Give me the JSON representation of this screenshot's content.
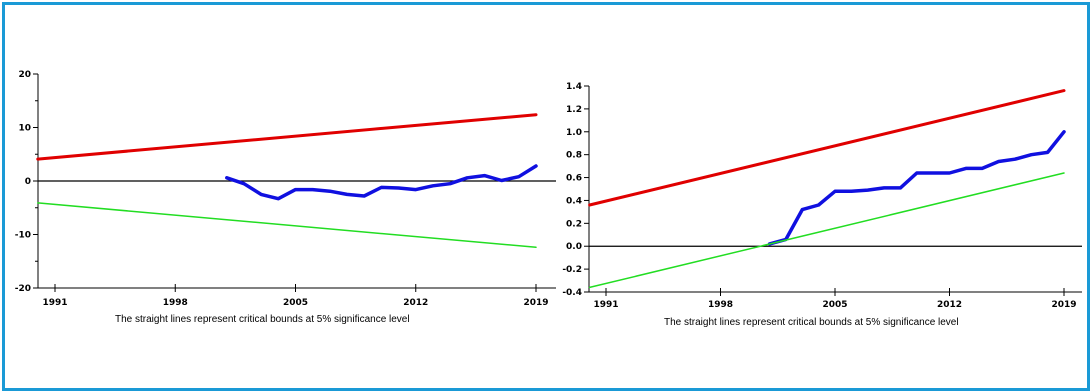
{
  "chart_data": [
    {
      "type": "line",
      "caption": "The straight lines represent critical bounds at 5% significance level",
      "x_ticks": [
        "1991",
        "1998",
        "2005",
        "2012",
        "2019"
      ],
      "y_ticks": [
        "20",
        "10",
        "0",
        "-10",
        "-20"
      ],
      "xlim": [
        1991,
        2019
      ],
      "ylim": [
        -20,
        20
      ],
      "zero_line": 0,
      "series": [
        {
          "color": "#e00000",
          "x": [
            1990,
            2019
          ],
          "y": [
            4.1,
            12.4
          ]
        },
        {
          "color": "#1010e0",
          "x": [
            2001,
            2002,
            2003,
            2004,
            2005,
            2006,
            2007,
            2008,
            2009,
            2010,
            2011,
            2012,
            2013,
            2014,
            2015,
            2016,
            2017,
            2018,
            2019
          ],
          "y": [
            0.6,
            -0.5,
            -2.5,
            -3.3,
            -1.6,
            -1.6,
            -1.9,
            -2.5,
            -2.8,
            -1.2,
            -1.3,
            -1.6,
            -0.9,
            -0.5,
            0.6,
            1.0,
            0.1,
            0.8,
            2.8
          ]
        },
        {
          "color": "#22dd22",
          "x": [
            1990,
            2019
          ],
          "y": [
            -4.1,
            -12.4
          ]
        }
      ]
    },
    {
      "type": "line",
      "caption": "The straight lines represent critical bounds at 5% significance level",
      "x_ticks": [
        "1991",
        "1998",
        "2005",
        "2012",
        "2019"
      ],
      "y_ticks": [
        "1.4",
        "1.2",
        "1.0",
        "0.8",
        "0.6",
        "0.4",
        "0.2",
        "0.0",
        "-0.2",
        "-0.4"
      ],
      "xlim": [
        1991,
        2019
      ],
      "ylim": [
        -0.4,
        1.4
      ],
      "zero_line": 0,
      "series": [
        {
          "color": "#e00000",
          "x": [
            1990,
            2019
          ],
          "y": [
            0.36,
            1.36
          ]
        },
        {
          "color": "#1010e0",
          "x": [
            2001,
            2002,
            2003,
            2004,
            2005,
            2006,
            2007,
            2008,
            2009,
            2010,
            2011,
            2012,
            2013,
            2014,
            2015,
            2016,
            2017,
            2018,
            2019
          ],
          "y": [
            0.02,
            0.06,
            0.32,
            0.36,
            0.48,
            0.48,
            0.49,
            0.51,
            0.51,
            0.64,
            0.64,
            0.64,
            0.68,
            0.68,
            0.74,
            0.76,
            0.8,
            0.82,
            1.0
          ]
        },
        {
          "color": "#22dd22",
          "x": [
            1990,
            2019
          ],
          "y": [
            -0.36,
            0.64
          ]
        }
      ]
    }
  ]
}
